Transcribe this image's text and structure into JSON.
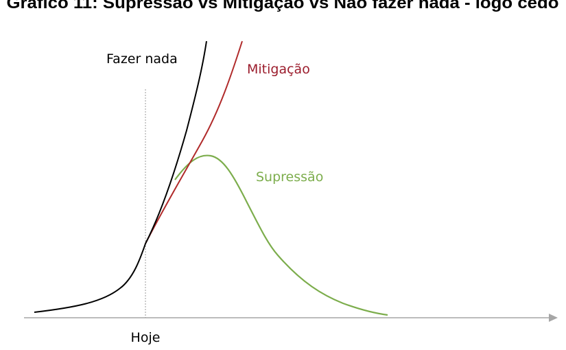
{
  "title": "Gráfico 11: Supressão vs Mitigação vs Não fazer nada - logo cedo",
  "curves": {
    "nothing": "Fazer nada",
    "mitigation": "Mitigação",
    "suppression": "Supressão"
  },
  "axis": {
    "today": "Hoje"
  }
}
